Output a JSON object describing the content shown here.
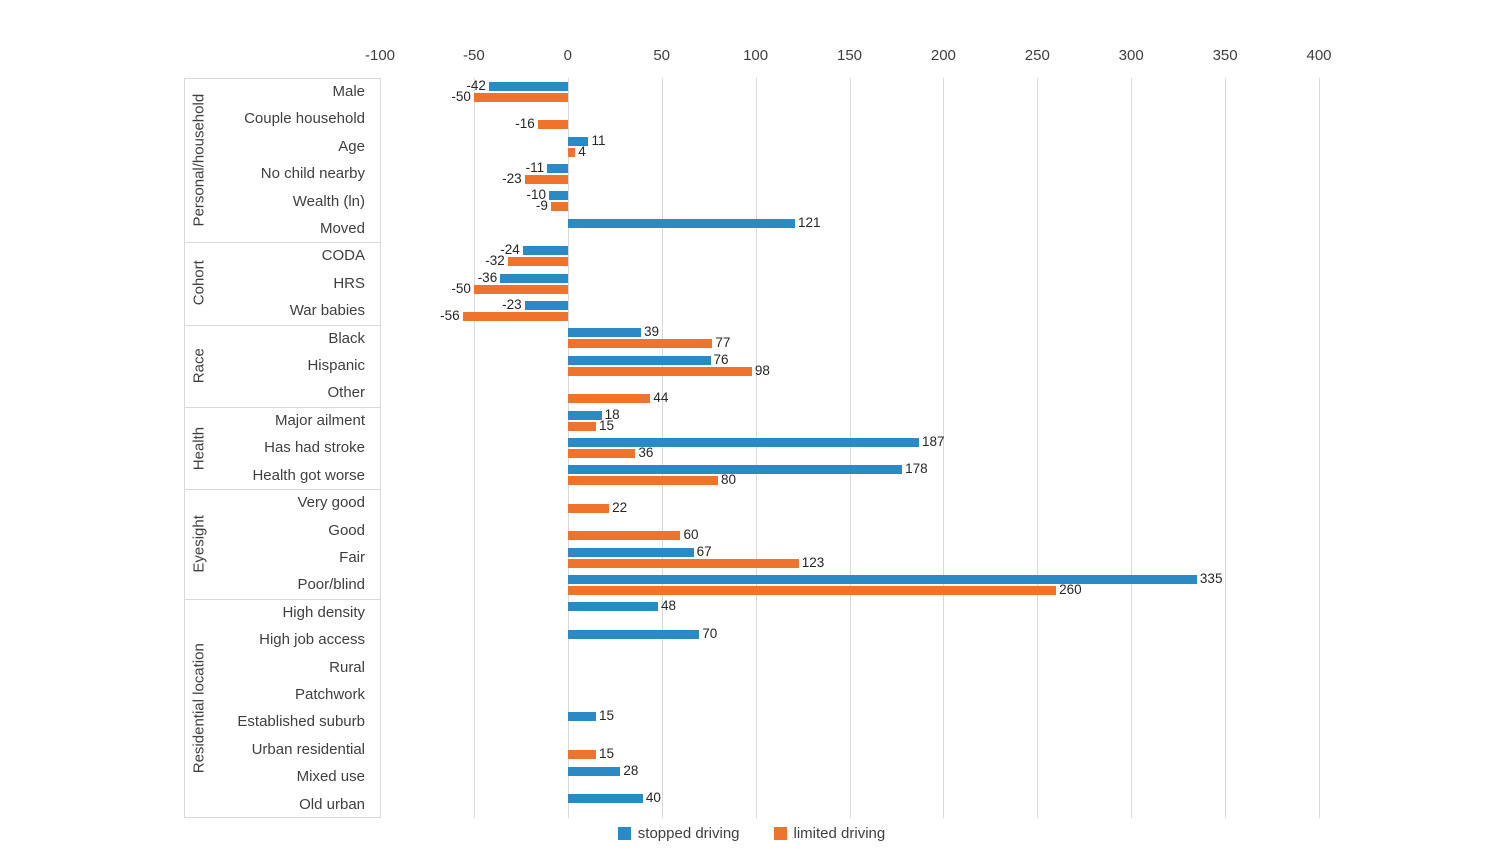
{
  "colors": {
    "stopped_driving": "#298ac6",
    "limited_driving": "#f0732d",
    "gridline": "#d9d9d9",
    "axis_text": "#3f3f3f",
    "value_text": "#262626"
  },
  "legend": {
    "items": [
      {
        "label": "stopped driving",
        "color": "#298ac6"
      },
      {
        "label": "limited driving",
        "color": "#f0732d"
      }
    ],
    "position": "bottom-center"
  },
  "chart_data": {
    "type": "bar",
    "orientation": "horizontal",
    "title": "",
    "xlabel": "",
    "ylabel": "",
    "xlim": [
      -100,
      400
    ],
    "x_ticks": [
      -100,
      -50,
      0,
      50,
      100,
      150,
      200,
      250,
      300,
      350,
      400
    ],
    "grid": true,
    "legend_position": "bottom",
    "series": [
      {
        "name": "stopped driving",
        "color": "#298ac6"
      },
      {
        "name": "limited driving",
        "color": "#f0732d"
      }
    ],
    "sections": [
      {
        "label": "Personal/household",
        "rows": [
          {
            "category": "Male",
            "values": [
              -42,
              -50
            ]
          },
          {
            "category": "Couple household",
            "values": [
              null,
              -16
            ]
          },
          {
            "category": "Age",
            "values": [
              11,
              4
            ]
          },
          {
            "category": "No child nearby",
            "values": [
              -11,
              -23
            ]
          },
          {
            "category": "Wealth (ln)",
            "values": [
              -10,
              -9
            ]
          },
          {
            "category": "Moved",
            "values": [
              121,
              null
            ]
          }
        ]
      },
      {
        "label": "Cohort",
        "rows": [
          {
            "category": "CODA",
            "values": [
              -24,
              -32
            ]
          },
          {
            "category": "HRS",
            "values": [
              -36,
              -50
            ]
          },
          {
            "category": "War babies",
            "values": [
              -23,
              -56
            ]
          }
        ]
      },
      {
        "label": "Race",
        "rows": [
          {
            "category": "Black",
            "values": [
              39,
              77
            ]
          },
          {
            "category": "Hispanic",
            "values": [
              76,
              98
            ]
          },
          {
            "category": "Other",
            "values": [
              null,
              44
            ]
          }
        ]
      },
      {
        "label": "Health",
        "rows": [
          {
            "category": "Major ailment",
            "values": [
              18,
              15
            ]
          },
          {
            "category": "Has had stroke",
            "values": [
              187,
              36
            ]
          },
          {
            "category": "Health got worse",
            "values": [
              178,
              80
            ]
          }
        ]
      },
      {
        "label": "Eyesight",
        "rows": [
          {
            "category": "Very good",
            "values": [
              null,
              22
            ]
          },
          {
            "category": "Good",
            "values": [
              null,
              60
            ]
          },
          {
            "category": "Fair",
            "values": [
              67,
              123
            ]
          },
          {
            "category": "Poor/blind",
            "values": [
              335,
              260
            ]
          }
        ]
      },
      {
        "label": "Residential location",
        "rows": [
          {
            "category": "High density",
            "values": [
              48,
              null
            ]
          },
          {
            "category": "High job access",
            "values": [
              70,
              null
            ]
          },
          {
            "category": "Rural",
            "values": [
              null,
              null
            ]
          },
          {
            "category": "Patchwork",
            "values": [
              null,
              null
            ]
          },
          {
            "category": "Established suburb",
            "values": [
              15,
              null
            ]
          },
          {
            "category": "Urban residential",
            "values": [
              null,
              15
            ]
          },
          {
            "category": "Mixed use",
            "values": [
              28,
              null
            ]
          },
          {
            "category": "Old urban",
            "values": [
              40,
              null
            ]
          }
        ]
      }
    ]
  }
}
